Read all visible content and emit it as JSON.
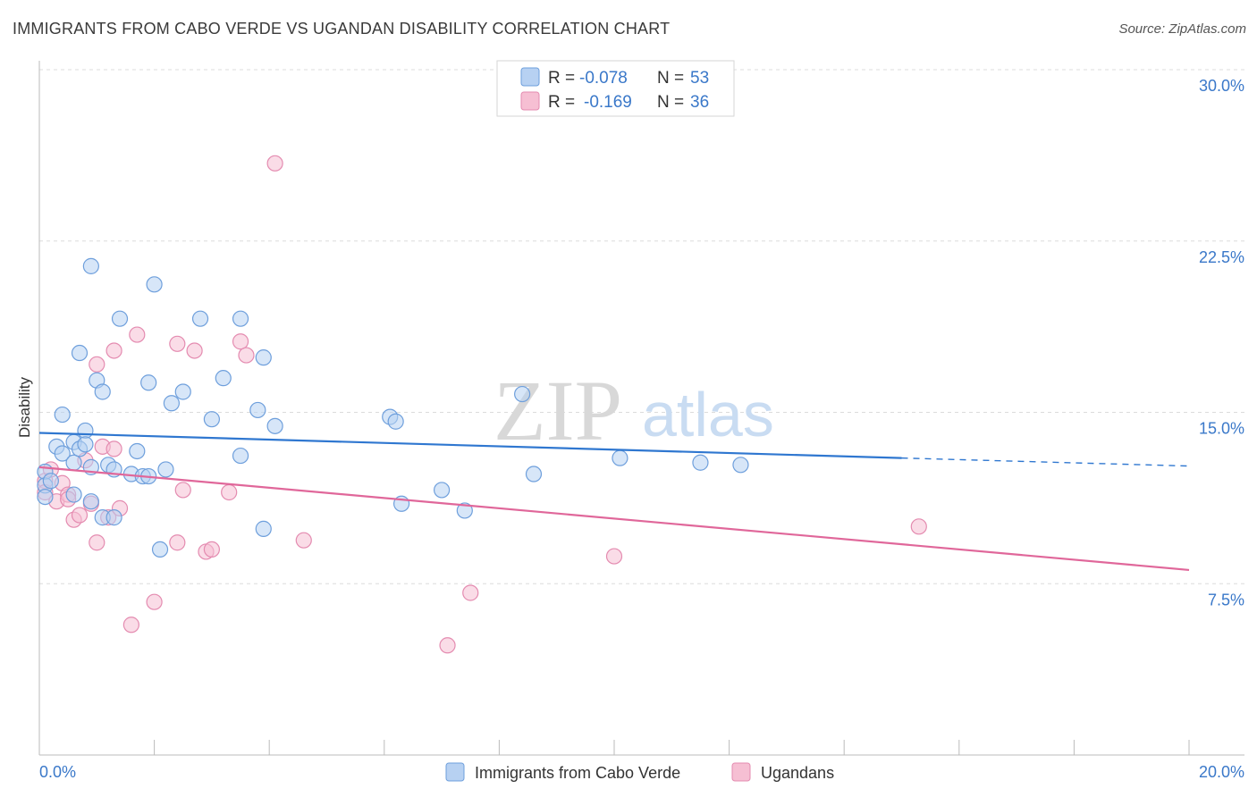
{
  "header": {
    "title": "IMMIGRANTS FROM CABO VERDE VS UGANDAN DISABILITY CORRELATION CHART",
    "source": "Source: ZipAtlas.com"
  },
  "watermark": {
    "zip": "ZIP",
    "atlas": "atlas"
  },
  "colors": {
    "blue": "#2f77d0",
    "blue_fill": "#b7d1f2",
    "pink": "#e0679a",
    "pink_fill": "#f6bfd3",
    "value_text": "#3a78c9"
  },
  "legend": {
    "rows": [
      {
        "r_label": "R =",
        "r_value": "-0.078",
        "n_label": "N =",
        "n_value": "53"
      },
      {
        "r_label": "R =",
        "r_value": "-0.169",
        "n_label": "N =",
        "n_value": "36"
      }
    ]
  },
  "chart_data": {
    "type": "scatter",
    "title": "IMMIGRANTS FROM CABO VERDE VS UGANDAN DISABILITY CORRELATION CHART",
    "xlabel": "",
    "ylabel": "Disability",
    "xlim": [
      0,
      20
    ],
    "ylim": [
      0,
      30
    ],
    "x_tick_labels": [
      "0.0%",
      "20.0%"
    ],
    "y_ticks": [
      7.5,
      15.0,
      22.5,
      30.0
    ],
    "y_tick_labels": [
      "7.5%",
      "15.0%",
      "22.5%",
      "30.0%"
    ],
    "grid": true,
    "legend_position": "bottom",
    "series": [
      {
        "name": "Immigrants from Cabo Verde",
        "color": "#2f77d0",
        "r": -0.078,
        "n": 53,
        "trend": {
          "x0": 0,
          "y0": 14.1,
          "x1": 15.0,
          "y1": 13.0,
          "dash_to_x": 20.0,
          "dash_to_y": 12.65
        },
        "points": [
          [
            0.1,
            12.4
          ],
          [
            0.1,
            11.8
          ],
          [
            0.2,
            12.0
          ],
          [
            0.1,
            11.3
          ],
          [
            0.3,
            13.5
          ],
          [
            0.4,
            13.2
          ],
          [
            0.4,
            14.9
          ],
          [
            0.6,
            12.8
          ],
          [
            0.6,
            13.7
          ],
          [
            0.7,
            13.4
          ],
          [
            0.8,
            14.2
          ],
          [
            0.8,
            13.6
          ],
          [
            0.9,
            12.6
          ],
          [
            0.9,
            11.1
          ],
          [
            0.7,
            17.6
          ],
          [
            0.9,
            21.4
          ],
          [
            1.0,
            16.4
          ],
          [
            1.1,
            15.9
          ],
          [
            1.1,
            10.4
          ],
          [
            1.2,
            12.7
          ],
          [
            1.3,
            12.5
          ],
          [
            1.3,
            10.4
          ],
          [
            1.4,
            19.1
          ],
          [
            1.6,
            12.3
          ],
          [
            1.7,
            13.3
          ],
          [
            1.8,
            12.2
          ],
          [
            1.9,
            12.2
          ],
          [
            1.9,
            16.3
          ],
          [
            2.0,
            20.6
          ],
          [
            2.1,
            9.0
          ],
          [
            2.2,
            12.5
          ],
          [
            2.3,
            15.4
          ],
          [
            2.5,
            15.9
          ],
          [
            2.8,
            19.1
          ],
          [
            3.0,
            14.7
          ],
          [
            3.2,
            16.5
          ],
          [
            3.5,
            19.1
          ],
          [
            3.5,
            13.1
          ],
          [
            3.8,
            15.1
          ],
          [
            3.9,
            17.4
          ],
          [
            3.9,
            9.9
          ],
          [
            4.1,
            14.4
          ],
          [
            6.1,
            14.8
          ],
          [
            6.2,
            14.6
          ],
          [
            6.3,
            11.0
          ],
          [
            7.0,
            11.6
          ],
          [
            7.4,
            10.7
          ],
          [
            8.4,
            15.8
          ],
          [
            8.6,
            12.3
          ],
          [
            10.1,
            13.0
          ],
          [
            11.5,
            12.8
          ],
          [
            12.2,
            12.7
          ],
          [
            0.6,
            11.4
          ]
        ]
      },
      {
        "name": "Ugandans",
        "color": "#e0679a",
        "r": -0.169,
        "n": 36,
        "trend": {
          "x0": 0,
          "y0": 12.6,
          "x1": 20.0,
          "y1": 8.1
        },
        "points": [
          [
            0.1,
            12.0
          ],
          [
            0.1,
            11.5
          ],
          [
            0.2,
            12.5
          ],
          [
            0.3,
            11.1
          ],
          [
            0.4,
            11.9
          ],
          [
            0.5,
            11.4
          ],
          [
            0.6,
            10.3
          ],
          [
            0.7,
            10.5
          ],
          [
            0.5,
            11.2
          ],
          [
            0.8,
            12.9
          ],
          [
            0.9,
            11.0
          ],
          [
            1.0,
            17.1
          ],
          [
            1.0,
            9.3
          ],
          [
            1.1,
            13.5
          ],
          [
            1.2,
            10.4
          ],
          [
            1.3,
            13.4
          ],
          [
            1.3,
            17.7
          ],
          [
            1.4,
            10.8
          ],
          [
            1.6,
            5.7
          ],
          [
            1.7,
            18.4
          ],
          [
            2.0,
            6.7
          ],
          [
            2.4,
            18.0
          ],
          [
            2.4,
            9.3
          ],
          [
            2.5,
            11.6
          ],
          [
            2.7,
            17.7
          ],
          [
            2.9,
            8.9
          ],
          [
            3.0,
            9.0
          ],
          [
            3.3,
            11.5
          ],
          [
            3.5,
            18.1
          ],
          [
            3.6,
            17.5
          ],
          [
            4.1,
            25.9
          ],
          [
            4.6,
            9.4
          ],
          [
            7.1,
            4.8
          ],
          [
            7.5,
            7.1
          ],
          [
            10.0,
            8.7
          ],
          [
            15.3,
            10.0
          ]
        ]
      }
    ]
  }
}
